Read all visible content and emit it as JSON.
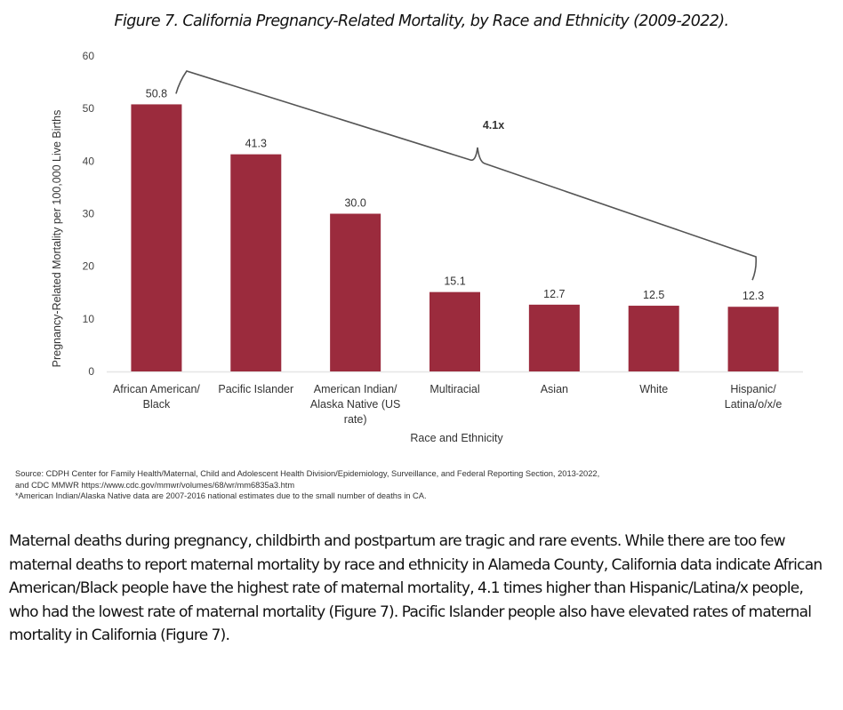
{
  "figure_title": "Figure 7. California Pregnancy-Related Mortality, by Race and Ethnicity (2009-2022).",
  "chart_data": {
    "type": "bar",
    "title": "Figure 7. California Pregnancy-Related Mortality, by Race and Ethnicity (2009-2022).",
    "categories": [
      [
        "African American/",
        "Black"
      ],
      [
        "Pacific Islander"
      ],
      [
        "American Indian/",
        "Alaska Native (US",
        "rate)"
      ],
      [
        "Multiracial"
      ],
      [
        "Asian"
      ],
      [
        "White"
      ],
      [
        "Hispanic/",
        "Latina/o/x/e"
      ]
    ],
    "values": [
      50.8,
      41.3,
      30.0,
      15.1,
      12.7,
      12.5,
      12.3
    ],
    "data_labels": [
      "50.8",
      "41.3",
      "30.0",
      "15.1",
      "12.7",
      "12.5",
      "12.3"
    ],
    "xlabel": "Race and Ethnicity",
    "ylabel": "Pregnancy-Related Mortality per 100,000 Live Births",
    "ylim": [
      0,
      60
    ],
    "yticks": [
      0,
      10,
      20,
      30,
      40,
      50,
      60
    ],
    "grid": false,
    "legend": "none",
    "bar_color": "#9b2b3d",
    "annotation": {
      "text": "4.1x",
      "type": "bracket",
      "from_category": "African American/Black",
      "to_category": "Hispanic/Latina/o/x/e"
    }
  },
  "source_notes": [
    "Source: CDPH Center for Family Health/Maternal, Child and Adolescent Health Division/Epidemiology, Surveillance, and Federal Reporting Section, 2013-2022,",
    "and CDC MMWR https://www.cdc.gov/mmwr/volumes/68/wr/mm6835a3.htm",
    "*American Indian/Alaska Native data are 2007-2016 national estimates due to the small number of deaths in CA."
  ],
  "body_paragraph": "Maternal deaths during pregnancy, childbirth and postpartum are tragic and rare events. While there are too few maternal deaths to report maternal mortality by race and ethnicity in Alameda County, California data indicate African American/Black people have the highest rate of maternal mortality, 4.1 times higher than Hispanic/Latina/x people, who had the lowest rate of maternal mortality (Figure 7). Pacific Islander people also have elevated rates of maternal mortality in California (Figure 7)."
}
